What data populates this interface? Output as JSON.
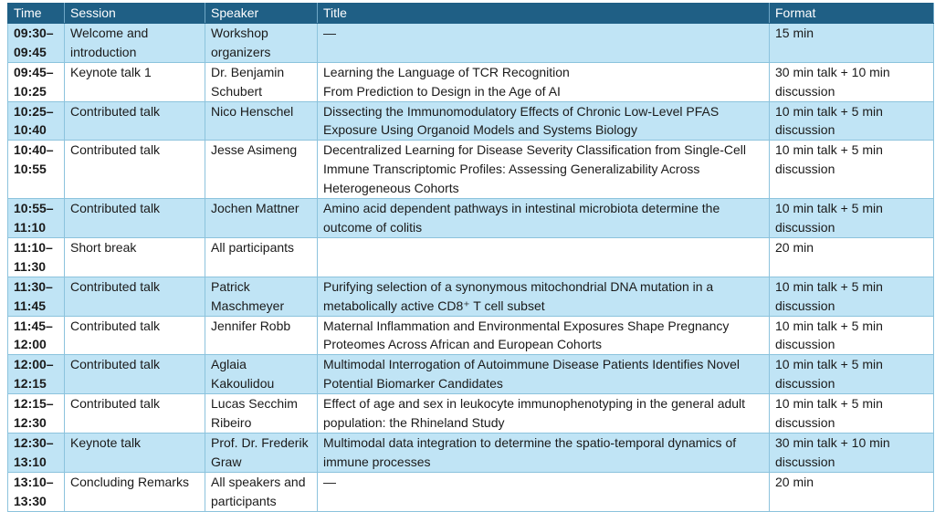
{
  "table": {
    "header": [
      "Time",
      "Session",
      "Speaker",
      "Title",
      "Format"
    ],
    "rows": [
      [
        "09:30–\n09:45",
        "Welcome and introduction",
        "Workshop organizers",
        "—",
        "15 min"
      ],
      [
        "09:45–\n10:25",
        "Keynote talk 1",
        "Dr. Benjamin Schubert",
        "Learning the Language of TCR Recognition\nFrom Prediction to Design in the Age of AI",
        "30 min talk + 10 min discussion"
      ],
      [
        "10:25–\n10:40",
        "Contributed talk",
        "Nico Henschel",
        "Dissecting the Immunomodulatory Effects of Chronic Low-Level PFAS Exposure Using Organoid Models and Systems Biology",
        "10 min talk + 5 min discussion"
      ],
      [
        "10:40–\n10:55",
        "Contributed talk",
        "Jesse Asimeng",
        "Decentralized Learning for Disease Severity Classification from Single-Cell Immune Transcriptomic Profiles: Assessing Generalizability Across Heterogeneous Cohorts",
        "10 min talk + 5 min discussion"
      ],
      [
        "10:55–\n11:10",
        "Contributed talk",
        "Jochen Mattner",
        "Amino acid dependent pathways in intestinal microbiota determine the outcome of colitis",
        "10 min talk + 5 min discussion"
      ],
      [
        "11:10–\n11:30",
        "Short break",
        "All participants",
        "",
        "20 min"
      ],
      [
        "11:30–\n11:45",
        "Contributed talk",
        "Patrick Maschmeyer",
        "Purifying selection of a synonymous mitochondrial DNA mutation in a metabolically active CD8⁺ T cell subset",
        "10 min talk + 5 min discussion"
      ],
      [
        "11:45–\n12:00",
        "Contributed talk",
        "Jennifer Robb",
        "Maternal Inflammation and Environmental Exposures Shape Pregnancy Proteomes Across African and European Cohorts",
        "10 min talk + 5 min discussion"
      ],
      [
        "12:00–\n12:15",
        "Contributed talk",
        "Aglaia Kakoulidou",
        "Multimodal Interrogation of Autoimmune Disease Patients Identifies Novel Potential Biomarker Candidates",
        "10 min talk + 5 min discussion"
      ],
      [
        "12:15–\n12:30",
        "Contributed talk",
        "Lucas Secchim Ribeiro",
        "Effect of age and sex in leukocyte immunophenotyping in the general adult population: the Rhineland Study",
        "10 min talk + 5 min discussion"
      ],
      [
        "12:30–\n13:10",
        "Keynote talk",
        "Prof. Dr. Frederik Graw",
        "Multimodal data integration to determine the spatio-temporal dynamics of immune processes",
        "30 min talk + 10 min discussion"
      ],
      [
        "13:10–\n13:30",
        "Concluding Remarks",
        "All speakers and participants",
        "—",
        "20 min"
      ]
    ]
  }
}
